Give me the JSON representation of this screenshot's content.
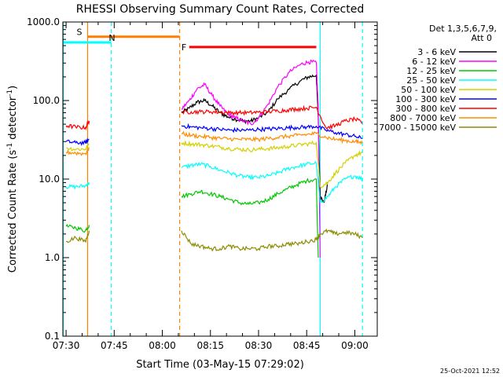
{
  "chart_data": {
    "type": "line",
    "title": "RHESSI Observing Summary Count Rates, Corrected",
    "xlabel": "Start Time (03-May-15 07:29:02)",
    "ylabel_parts": [
      "Corrected Count Rate (s",
      "-1",
      " detector",
      "-1",
      ")"
    ],
    "yscale": "log",
    "ylim": [
      0.1,
      1000.0
    ],
    "xlim": [
      "07:29:00",
      "09:07:00"
    ],
    "xticks": [
      {
        "label": "07:30",
        "t": 7.5
      },
      {
        "label": "07:45",
        "t": 7.75
      },
      {
        "label": "08:00",
        "t": 8.0
      },
      {
        "label": "08:15",
        "t": 8.25
      },
      {
        "label": "08:30",
        "t": 8.5
      },
      {
        "label": "08:45",
        "t": 8.75
      },
      {
        "label": "09:00",
        "t": 9.0
      }
    ],
    "yticks": [
      {
        "label": "1000.0",
        "v": 1000
      },
      {
        "label": "100.0",
        "v": 100
      },
      {
        "label": "10.0",
        "v": 10
      },
      {
        "label": "1.0",
        "v": 1
      },
      {
        "label": "0.1",
        "v": 0.1
      }
    ],
    "legend_header": [
      "Det 1,3,5,6,7,9,",
      "Att 0"
    ],
    "legend_position": "right",
    "timestamp": "25-Oct-2021 12:52",
    "flags": [
      {
        "label": "S",
        "color": "#ff7f00",
        "t0": 7.612,
        "t1": 8.09
      },
      {
        "label": "N",
        "color": "#00ffff",
        "t0": 7.485,
        "t1": 7.735
      },
      {
        "label": "F",
        "color": "#ff0000",
        "t0": 8.14,
        "t1": 8.8
      }
    ],
    "flags_level": {
      "S": 650,
      "N": 550,
      "F": 480
    },
    "vlines": [
      {
        "t": 7.485,
        "color": "#00ffff",
        "style": "solid"
      },
      {
        "t": 7.612,
        "color": "#ff7f00",
        "style": "solid"
      },
      {
        "t": 7.735,
        "color": "#00ffff",
        "style": "dashed"
      },
      {
        "t": 8.09,
        "color": "#ff7f00",
        "style": "dashed"
      },
      {
        "t": 8.82,
        "color": "#00ffff",
        "style": "solid"
      },
      {
        "t": 9.04,
        "color": "#00ffff",
        "style": "dashed"
      }
    ],
    "series": [
      {
        "name": "3 - 6 keV",
        "color": "#000000",
        "x": [
          8.1,
          8.14,
          8.18,
          8.22,
          8.26,
          8.3,
          8.34,
          8.38,
          8.42,
          8.46,
          8.5,
          8.55,
          8.6,
          8.66,
          8.72,
          8.76,
          8.8,
          8.81,
          8.82,
          8.84,
          8.86
        ],
        "y": [
          70,
          80,
          95,
          100,
          85,
          70,
          62,
          58,
          55,
          55,
          60,
          72,
          105,
          140,
          180,
          200,
          210,
          60,
          6,
          5,
          9
        ]
      },
      {
        "name": "6 - 12 keV",
        "color": "#ff00ff",
        "x": [
          8.1,
          8.14,
          8.18,
          8.22,
          8.26,
          8.3,
          8.34,
          8.38,
          8.42,
          8.46,
          8.5,
          8.55,
          8.6,
          8.66,
          8.72,
          8.76,
          8.8,
          8.81,
          8.82
        ],
        "y": [
          78,
          100,
          140,
          160,
          115,
          85,
          68,
          60,
          55,
          50,
          60,
          90,
          150,
          230,
          290,
          310,
          305,
          80,
          1.0
        ]
      },
      {
        "name": "12 - 25 keV",
        "color": "#00c800",
        "x": [
          7.5,
          7.55,
          7.6,
          7.62,
          8.1,
          8.15,
          8.2,
          8.25,
          8.3,
          8.35,
          8.4,
          8.45,
          8.5,
          8.55,
          8.6,
          8.65,
          8.7,
          8.75,
          8.8,
          8.81
        ],
        "y": [
          2.5,
          2.4,
          2.2,
          2.6,
          6,
          6.5,
          7,
          6.5,
          6,
          5.5,
          5,
          4.8,
          5,
          5.5,
          6.5,
          7.5,
          8.5,
          9.5,
          10,
          1.0
        ]
      },
      {
        "name": "25 - 50 keV",
        "color": "#00ffff",
        "x": [
          7.5,
          7.55,
          7.6,
          7.62,
          8.1,
          8.15,
          8.2,
          8.25,
          8.3,
          8.35,
          8.4,
          8.45,
          8.5,
          8.55,
          8.6,
          8.65,
          8.7,
          8.75,
          8.8,
          8.82,
          8.86,
          8.9,
          8.95,
          9.0,
          9.04
        ],
        "y": [
          8,
          8,
          8.2,
          9,
          14,
          15,
          15.5,
          14.5,
          13,
          12,
          11,
          10.5,
          10.5,
          11,
          12,
          13.5,
          14.5,
          15.5,
          16,
          5,
          6,
          8,
          10,
          11,
          10
        ]
      },
      {
        "name": "50 - 100 keV",
        "color": "#d2d200",
        "x": [
          7.5,
          7.55,
          7.6,
          7.62,
          8.1,
          8.15,
          8.2,
          8.25,
          8.3,
          8.35,
          8.4,
          8.45,
          8.5,
          8.55,
          8.6,
          8.65,
          8.7,
          8.75,
          8.8,
          8.82,
          8.86,
          8.9,
          8.95,
          9.0,
          9.04
        ],
        "y": [
          25,
          24,
          24,
          28,
          29,
          28,
          27.5,
          26.5,
          25.5,
          24.5,
          24,
          23.5,
          24,
          24.5,
          25,
          26,
          27,
          28,
          29,
          8,
          9,
          12,
          16,
          20,
          22
        ]
      },
      {
        "name": "100 - 300 keV",
        "color": "#0000ff",
        "x": [
          7.5,
          7.55,
          7.6,
          7.62,
          8.1,
          8.15,
          8.2,
          8.25,
          8.3,
          8.35,
          8.4,
          8.45,
          8.5,
          8.55,
          8.6,
          8.65,
          8.7,
          8.75,
          8.8,
          8.85,
          8.9,
          8.95,
          9.0,
          9.04
        ],
        "y": [
          30,
          29,
          29,
          32,
          48,
          46,
          45,
          44,
          43,
          42,
          42,
          42,
          43,
          43.5,
          44,
          45,
          45.5,
          46,
          47,
          42,
          39,
          37,
          35,
          33
        ]
      },
      {
        "name": "300 - 800 keV",
        "color": "#ff0000",
        "x": [
          7.5,
          7.55,
          7.6,
          7.62,
          8.1,
          8.15,
          8.2,
          8.25,
          8.3,
          8.35,
          8.4,
          8.45,
          8.5,
          8.55,
          8.6,
          8.65,
          8.7,
          8.75,
          8.8,
          8.85,
          8.9,
          8.95,
          9.0,
          9.04
        ],
        "y": [
          48,
          46,
          45,
          55,
          70,
          72,
          72,
          72,
          71,
          70,
          70,
          70,
          71,
          72,
          74,
          76,
          78,
          80,
          82,
          45,
          48,
          55,
          58,
          52
        ]
      },
      {
        "name": "800 - 7000 keV",
        "color": "#ff8c00",
        "x": [
          7.5,
          7.55,
          7.6,
          7.62,
          8.1,
          8.15,
          8.2,
          8.25,
          8.3,
          8.35,
          8.4,
          8.45,
          8.5,
          8.55,
          8.6,
          8.65,
          8.7,
          8.75,
          8.8,
          8.85,
          8.9,
          8.95,
          9.0,
          9.04
        ],
        "y": [
          22,
          21.5,
          21,
          25,
          38,
          36,
          35,
          34,
          33,
          32.5,
          32,
          32,
          32,
          33,
          34,
          35,
          36,
          37,
          38,
          34,
          32,
          31,
          30,
          29
        ]
      },
      {
        "name": "7000 - 15000 keV",
        "color": "#8c8c00",
        "x": [
          7.5,
          7.55,
          7.6,
          7.62,
          8.1,
          8.15,
          8.2,
          8.25,
          8.3,
          8.35,
          8.4,
          8.45,
          8.5,
          8.55,
          8.6,
          8.65,
          8.7,
          8.75,
          8.8,
          8.82,
          8.86,
          8.9,
          8.95,
          9.0,
          9.04
        ],
        "y": [
          1.6,
          1.8,
          1.6,
          2.2,
          2.2,
          1.5,
          1.4,
          1.3,
          1.3,
          1.4,
          1.3,
          1.3,
          1.3,
          1.4,
          1.4,
          1.5,
          1.5,
          1.6,
          1.7,
          2.0,
          2.2,
          2.0,
          2.1,
          2.0,
          1.8
        ]
      }
    ]
  }
}
